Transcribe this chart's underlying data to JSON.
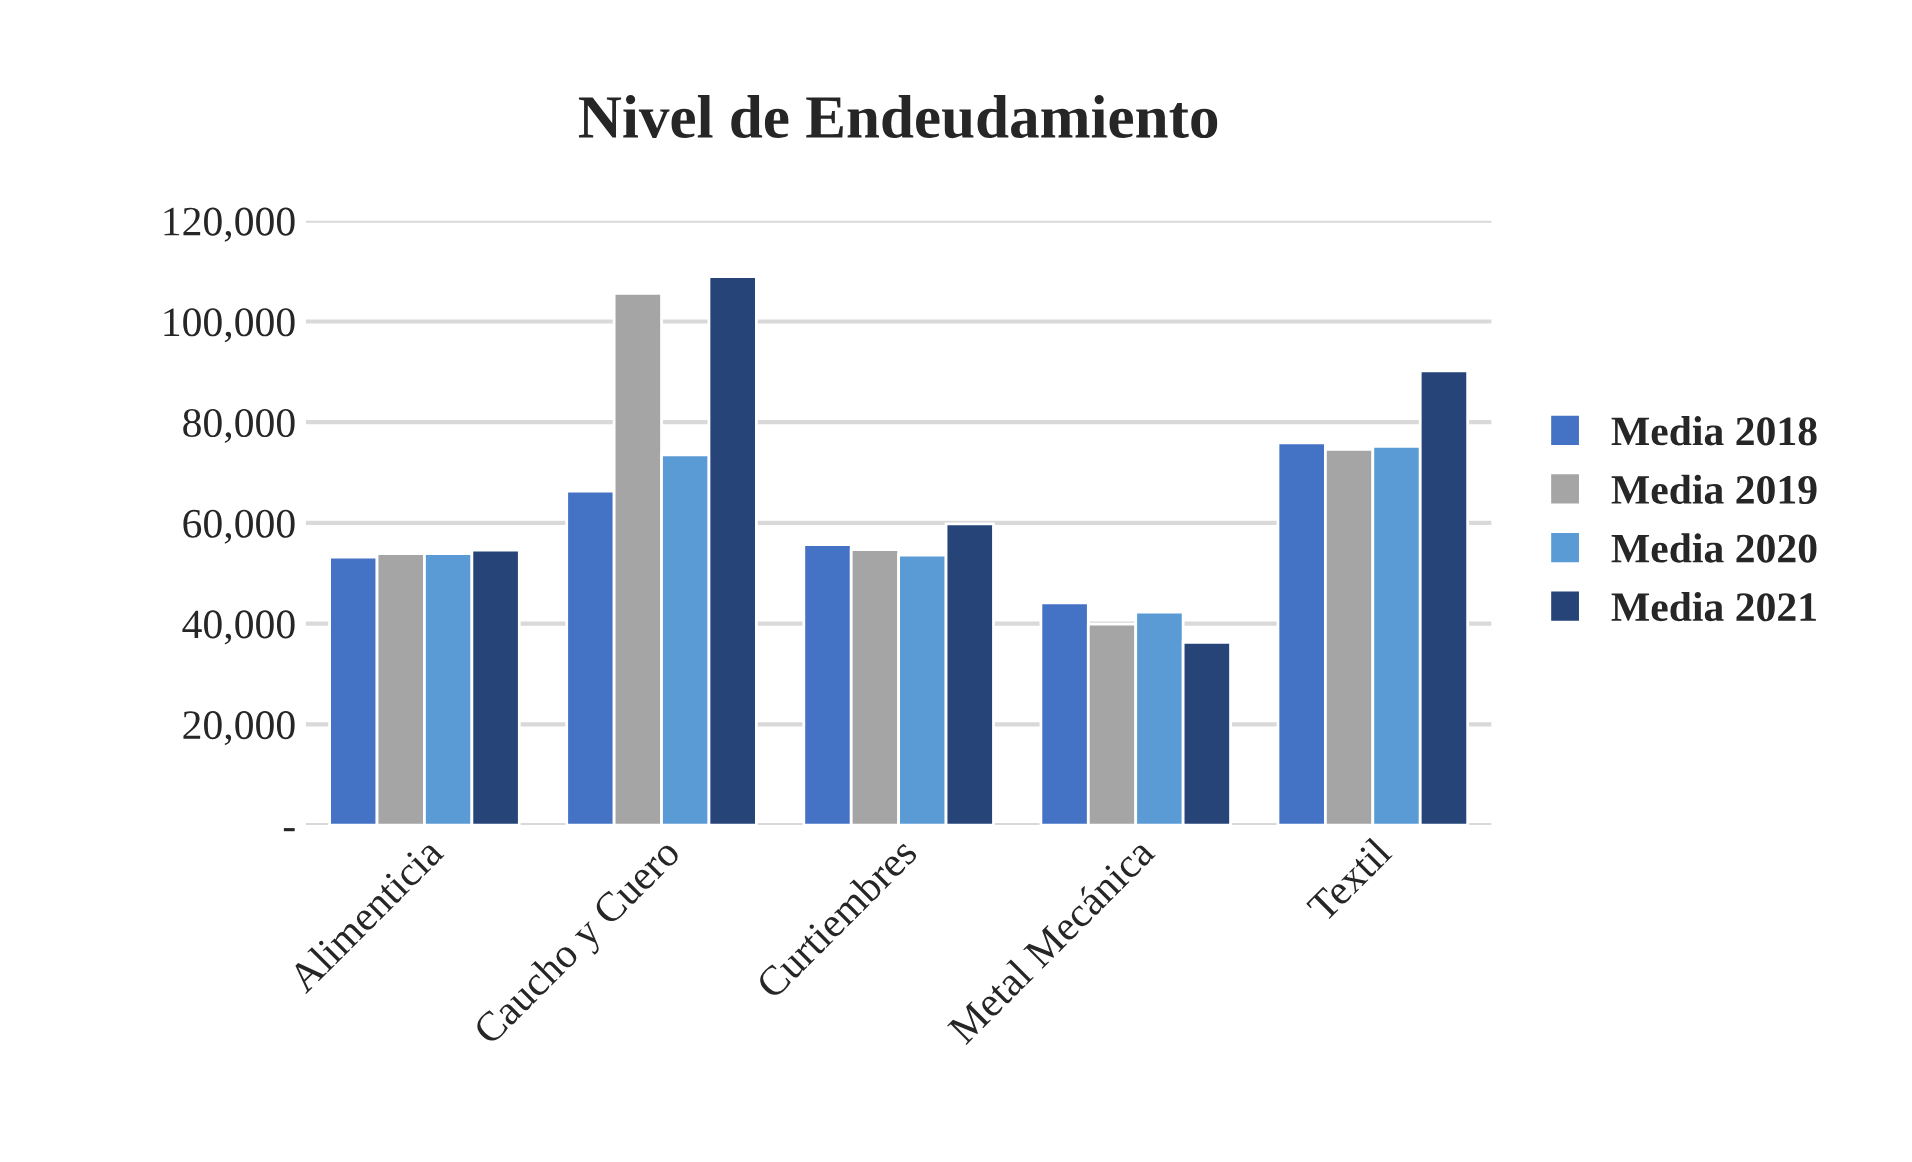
{
  "chart_data": {
    "type": "bar",
    "title": "Nivel de Endeudamiento",
    "categories": [
      "Alimenticia",
      "Caucho y Cuero",
      "Curtiembres",
      "Metal Mecánica",
      "Textil"
    ],
    "series": [
      {
        "name": "Media 2018",
        "color": "#4472c4",
        "values": [
          53200,
          66300,
          55700,
          44100,
          75900
        ]
      },
      {
        "name": "Media 2019",
        "color": "#a5a5a5",
        "values": [
          53900,
          105600,
          54700,
          39900,
          74600
        ]
      },
      {
        "name": "Media 2020",
        "color": "#5b9bd5",
        "values": [
          53900,
          73500,
          53600,
          42300,
          75200
        ]
      },
      {
        "name": "Media 2021",
        "color": "#264478",
        "values": [
          54600,
          108900,
          59800,
          36300,
          90200
        ]
      }
    ],
    "ylim": [
      0,
      120000
    ],
    "yticks": [
      {
        "value": 0,
        "label": "-"
      },
      {
        "value": 20000,
        "label": "20,000"
      },
      {
        "value": 40000,
        "label": "40,000"
      },
      {
        "value": 60000,
        "label": "60,000"
      },
      {
        "value": 80000,
        "label": "80,000"
      },
      {
        "value": 100000,
        "label": "100,000"
      },
      {
        "value": 120000,
        "label": "120,000"
      }
    ],
    "grid": "y",
    "legend": "right"
  }
}
